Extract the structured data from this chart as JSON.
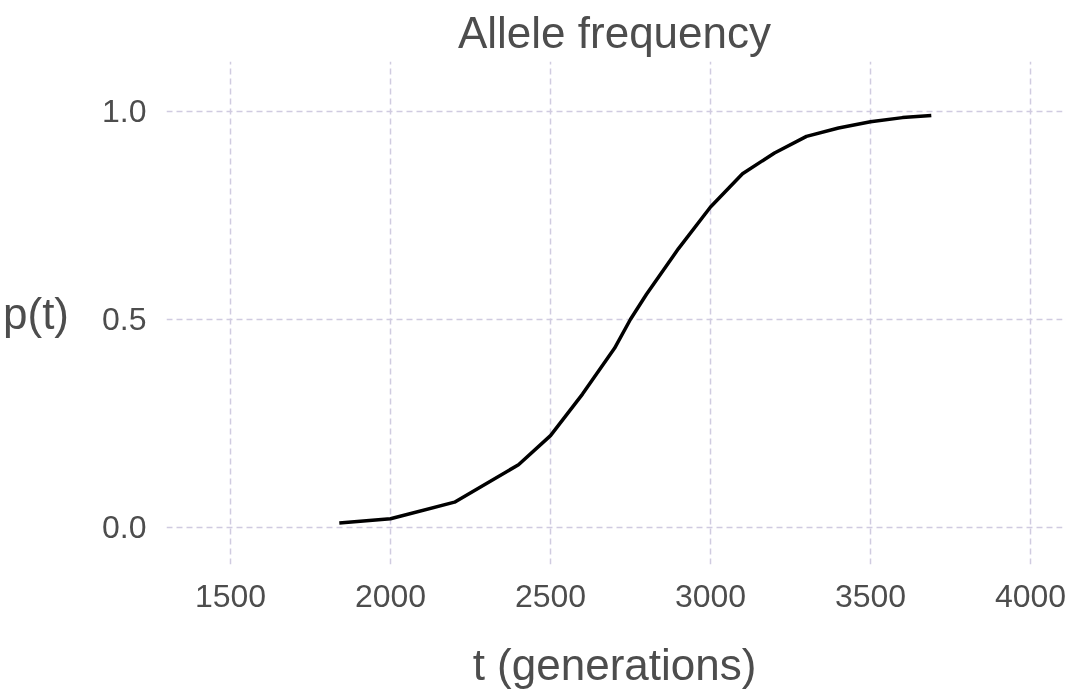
{
  "chart_data": {
    "type": "line",
    "title": "Allele frequency",
    "xlabel": "t (generations)",
    "ylabel": "p(t)",
    "x": [
      1840,
      2000,
      2200,
      2400,
      2500,
      2600,
      2700,
      2750,
      2800,
      2900,
      3000,
      3100,
      3200,
      3300,
      3400,
      3500,
      3600,
      3690
    ],
    "series": [
      {
        "color": "#000000",
        "values": [
          0.01,
          0.02,
          0.06,
          0.15,
          0.22,
          0.32,
          0.43,
          0.5,
          0.56,
          0.67,
          0.77,
          0.85,
          0.9,
          0.94,
          0.96,
          0.975,
          0.985,
          0.99
        ]
      }
    ],
    "xlim": [
      1300,
      4100
    ],
    "ylim": [
      -0.09,
      1.12
    ],
    "xticks": [
      1500,
      2000,
      2500,
      3000,
      3500,
      4000
    ],
    "yticks": [
      {
        "value": 0,
        "label": "0.0"
      },
      {
        "value": 0.5,
        "label": "0.5"
      },
      {
        "value": 1,
        "label": "1.0"
      }
    ],
    "grid": true,
    "line_style": "solid",
    "marker": "none"
  }
}
